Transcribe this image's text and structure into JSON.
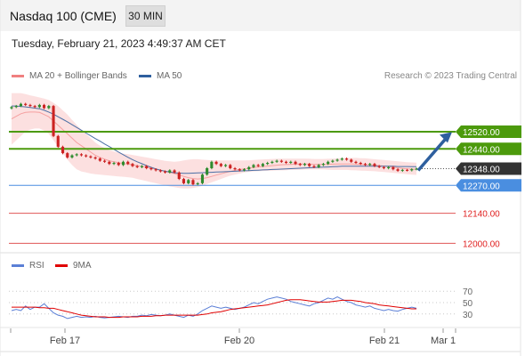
{
  "header": {
    "title": "Nasdaq 100 (CME)",
    "timeframe": "30 MIN"
  },
  "timestamp": "Tuesday, February 21, 2023 4:49:37 AM CET",
  "legend": {
    "ma20_bb": {
      "label": "MA 20 + Bollinger Bands",
      "color": "#f08080"
    },
    "ma50": {
      "label": "MA 50",
      "color": "#2e5f9e"
    }
  },
  "copyright": "Research © 2023 Trading Central",
  "rsi_legend": {
    "rsi": {
      "label": "RSI",
      "color": "#5b7fd6"
    },
    "ma9": {
      "label": "9MA",
      "color": "#e00000"
    }
  },
  "chart_data": [
    {
      "type": "candlestick",
      "price_range": [
        11960,
        12740
      ],
      "colors": {
        "up": "#2e8b2e",
        "down": "#cc2222",
        "bands": "#fcdada",
        "ma20": "#f5a0a0",
        "ma50": "#4a6fa5"
      },
      "levels": [
        {
          "value": 12520,
          "label": "12520.00",
          "style": "resistance",
          "color": "#4c9a0c"
        },
        {
          "value": 12440,
          "label": "12440.00",
          "style": "resistance",
          "color": "#4c9a0c"
        },
        {
          "value": 12348,
          "label": "12348.00",
          "style": "last",
          "color": "#333333"
        },
        {
          "value": 12270,
          "label": "12270.00",
          "style": "pivot",
          "color": "#4a8ee0"
        },
        {
          "value": 12140,
          "label": "12140.00",
          "style": "support",
          "color": "#e05555"
        },
        {
          "value": 12000,
          "label": "12000.00",
          "style": "support",
          "color": "#e05555"
        }
      ],
      "close": [
        12635,
        12640,
        12650,
        12645,
        12640,
        12635,
        12645,
        12630,
        12640,
        12500,
        12450,
        12420,
        12400,
        12410,
        12415,
        12410,
        12405,
        12400,
        12395,
        12385,
        12380,
        12370,
        12375,
        12365,
        12380,
        12370,
        12360,
        12355,
        12360,
        12350,
        12345,
        12340,
        12335,
        12330,
        12340,
        12330,
        12300,
        12280,
        12295,
        12275,
        12280,
        12320,
        12350,
        12380,
        12370,
        12360,
        12365,
        12350,
        12345,
        12340,
        12345,
        12355,
        12365,
        12360,
        12370,
        12375,
        12380,
        12385,
        12380,
        12375,
        12380,
        12370,
        12365,
        12370,
        12360,
        12355,
        12365,
        12370,
        12380,
        12385,
        12390,
        12395,
        12390,
        12380,
        12375,
        12370,
        12365,
        12370,
        12360,
        12355,
        12350,
        12355,
        12345,
        12338,
        12342,
        12340,
        12345,
        12348
      ],
      "ma20": [
        12580,
        12592,
        12604,
        12610,
        12612,
        12612,
        12610,
        12600,
        12590,
        12570,
        12550,
        12530,
        12510,
        12490,
        12470,
        12455,
        12440,
        12425,
        12410,
        12400,
        12392,
        12385,
        12380,
        12376,
        12372,
        12369,
        12366,
        12362,
        12358,
        12354,
        12350,
        12346,
        12340,
        12335,
        12330,
        12325,
        12318,
        12312,
        12306,
        12302,
        12300,
        12302,
        12306,
        12312,
        12318,
        12324,
        12330,
        12335,
        12340,
        12344,
        12347,
        12350,
        12353,
        12356,
        12358,
        12360,
        12362,
        12364,
        12366,
        12367,
        12368,
        12369,
        12370,
        12370,
        12369,
        12368,
        12368,
        12368,
        12368,
        12369,
        12370,
        12370,
        12370,
        12370,
        12369,
        12368,
        12367,
        12366,
        12364,
        12362,
        12360,
        12358,
        12355,
        12352,
        12349,
        12347,
        12346,
        12345
      ],
      "bb_upper": [
        12700,
        12700,
        12700,
        12695,
        12690,
        12685,
        12680,
        12675,
        12668,
        12655,
        12640,
        12620,
        12600,
        12575,
        12552,
        12530,
        12510,
        12490,
        12470,
        12455,
        12444,
        12434,
        12428,
        12422,
        12418,
        12415,
        12412,
        12408,
        12404,
        12400,
        12396,
        12392,
        12388,
        12384,
        12382,
        12380,
        12382,
        12386,
        12390,
        12392,
        12392,
        12390,
        12388,
        12387,
        12386,
        12386,
        12386,
        12386,
        12386,
        12386,
        12386,
        12387,
        12388,
        12390,
        12391,
        12392,
        12393,
        12394,
        12395,
        12395,
        12395,
        12395,
        12395,
        12395,
        12394,
        12393,
        12393,
        12393,
        12394,
        12395,
        12396,
        12397,
        12398,
        12398,
        12398,
        12397,
        12396,
        12394,
        12392,
        12390,
        12388,
        12386,
        12384,
        12382,
        12380,
        12378,
        12377,
        12376
      ],
      "bb_lower": [
        12460,
        12480,
        12500,
        12520,
        12530,
        12535,
        12535,
        12525,
        12510,
        12480,
        12450,
        12420,
        12390,
        12365,
        12345,
        12335,
        12330,
        12325,
        12322,
        12320,
        12318,
        12316,
        12314,
        12312,
        12310,
        12308,
        12305,
        12300,
        12295,
        12290,
        12285,
        12280,
        12275,
        12270,
        12265,
        12262,
        12258,
        12256,
        12256,
        12258,
        12262,
        12268,
        12276,
        12284,
        12292,
        12300,
        12308,
        12315,
        12320,
        12325,
        12330,
        12333,
        12335,
        12336,
        12337,
        12338,
        12339,
        12340,
        12340,
        12341,
        12342,
        12343,
        12343,
        12344,
        12344,
        12344,
        12344,
        12344,
        12343,
        12342,
        12342,
        12342,
        12342,
        12341,
        12340,
        12339,
        12338,
        12337,
        12336,
        12334,
        12332,
        12330,
        12328,
        12326,
        12324,
        12322,
        12320,
        12319
      ],
      "ma50": [
        12640,
        12640,
        12638,
        12636,
        12633,
        12630,
        12627,
        12620,
        12612,
        12602,
        12590,
        12578,
        12566,
        12553,
        12540,
        12527,
        12514,
        12501,
        12488,
        12476,
        12463,
        12451,
        12438,
        12425,
        12413,
        12401,
        12390,
        12380,
        12371,
        12362,
        12354,
        12347,
        12341,
        12336,
        12332,
        12329,
        12327,
        12326,
        12326,
        12327,
        12328,
        12329,
        12330,
        12331,
        12332,
        12333,
        12334,
        12335,
        12336,
        12337,
        12338,
        12339,
        12340,
        12341,
        12342,
        12343,
        12344,
        12345,
        12346,
        12347,
        12348,
        12349,
        12350,
        12351,
        12352,
        12353,
        12354,
        12355,
        12356,
        12357,
        12358,
        12359,
        12359,
        12359,
        12359,
        12359,
        12359,
        12359,
        12359,
        12359,
        12359,
        12359,
        12359,
        12358,
        12358,
        12358,
        12357,
        12357
      ],
      "x_labels": [
        "Feb 17",
        "Feb 20",
        "Feb 21",
        "Mar 1"
      ]
    },
    {
      "type": "line",
      "name": "RSI",
      "y_ticks": [
        70,
        50,
        30
      ],
      "ylim": [
        0,
        100
      ],
      "series": [
        {
          "name": "RSI",
          "color": "#5b7fd6",
          "values": [
            36,
            38,
            36,
            44,
            38,
            42,
            42,
            48,
            40,
            32,
            28,
            26,
            22,
            24,
            26,
            24,
            25,
            24,
            26,
            24,
            23,
            24,
            25,
            26,
            25,
            24,
            26,
            26,
            28,
            27,
            29,
            28,
            27,
            28,
            30,
            28,
            26,
            24,
            28,
            26,
            30,
            36,
            40,
            44,
            42,
            40,
            42,
            40,
            38,
            40,
            42,
            46,
            50,
            48,
            52,
            56,
            58,
            60,
            58,
            56,
            52,
            50,
            48,
            46,
            44,
            48,
            50,
            54,
            58,
            56,
            60,
            56,
            52,
            50,
            46,
            44,
            42,
            44,
            40,
            38,
            36,
            38,
            36,
            35,
            38,
            40,
            42,
            40
          ]
        },
        {
          "name": "9MA",
          "color": "#e00000",
          "values": [
            42,
            42,
            42,
            42,
            42,
            42,
            41,
            41,
            40,
            40,
            38,
            36,
            34,
            32,
            30,
            28,
            27,
            26,
            25,
            25,
            25,
            24,
            24,
            24,
            25,
            25,
            25,
            25,
            26,
            26,
            26,
            27,
            27,
            28,
            28,
            28,
            28,
            28,
            28,
            28,
            28,
            29,
            30,
            32,
            33,
            34,
            36,
            38,
            39,
            40,
            41,
            42,
            43,
            44,
            45,
            46,
            48,
            50,
            52,
            54,
            55,
            55,
            55,
            54,
            53,
            52,
            51,
            51,
            51,
            52,
            53,
            54,
            54,
            54,
            53,
            52,
            50,
            49,
            48,
            46,
            45,
            44,
            43,
            42,
            41,
            40,
            39,
            39
          ]
        }
      ]
    }
  ]
}
